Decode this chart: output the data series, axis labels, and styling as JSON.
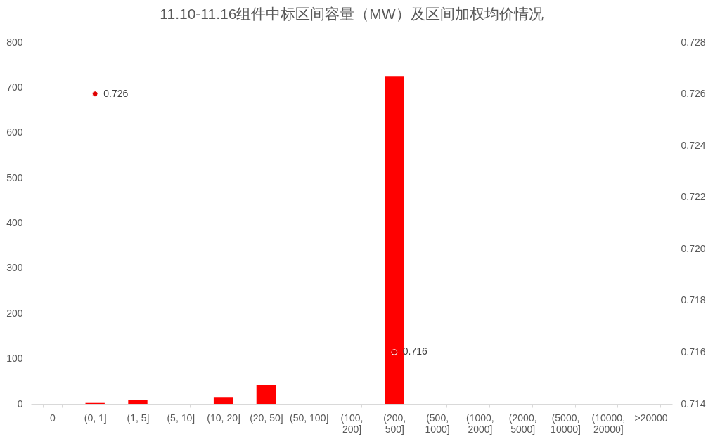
{
  "chart_data": {
    "type": "bar",
    "title": "11.10-11.16组件中标区间容量（MW）及区间加权均价情况",
    "categories": [
      "0",
      "(0, 1]",
      "(1, 5]",
      "(5, 10]",
      "(10, 20]",
      "(20, 50]",
      "(50, 100]",
      "(100, 200]",
      "(200, 500]",
      "(500, 1000]",
      "(1000, 2000]",
      "(2000, 5000]",
      "(5000, 10000]",
      "(10000, 20000]",
      ">20000"
    ],
    "series": [
      {
        "color": "#ff0000",
        "values": [
          0,
          2,
          9,
          0,
          15,
          42,
          0,
          0,
          725,
          0,
          0,
          0,
          0,
          0,
          0
        ]
      },
      {
        "type": "scatter",
        "axis": "y2",
        "color": "#e00000",
        "data_labels": true,
        "values": [
          null,
          0.726,
          null,
          null,
          null,
          null,
          null,
          null,
          0.716,
          null,
          null,
          null,
          null,
          null,
          null
        ]
      }
    ],
    "ylim": [
      0,
      800
    ],
    "yticks": [
      0,
      100,
      200,
      300,
      400,
      500,
      600,
      700,
      800
    ],
    "y2lim": [
      0.714,
      0.728
    ],
    "y2ticks": [
      0.714,
      0.716,
      0.718,
      {
        "value": 0.72,
        "label": "0.720"
      },
      0.722,
      0.724,
      0.726,
      0.728
    ],
    "grid": false,
    "marker": "circle"
  }
}
